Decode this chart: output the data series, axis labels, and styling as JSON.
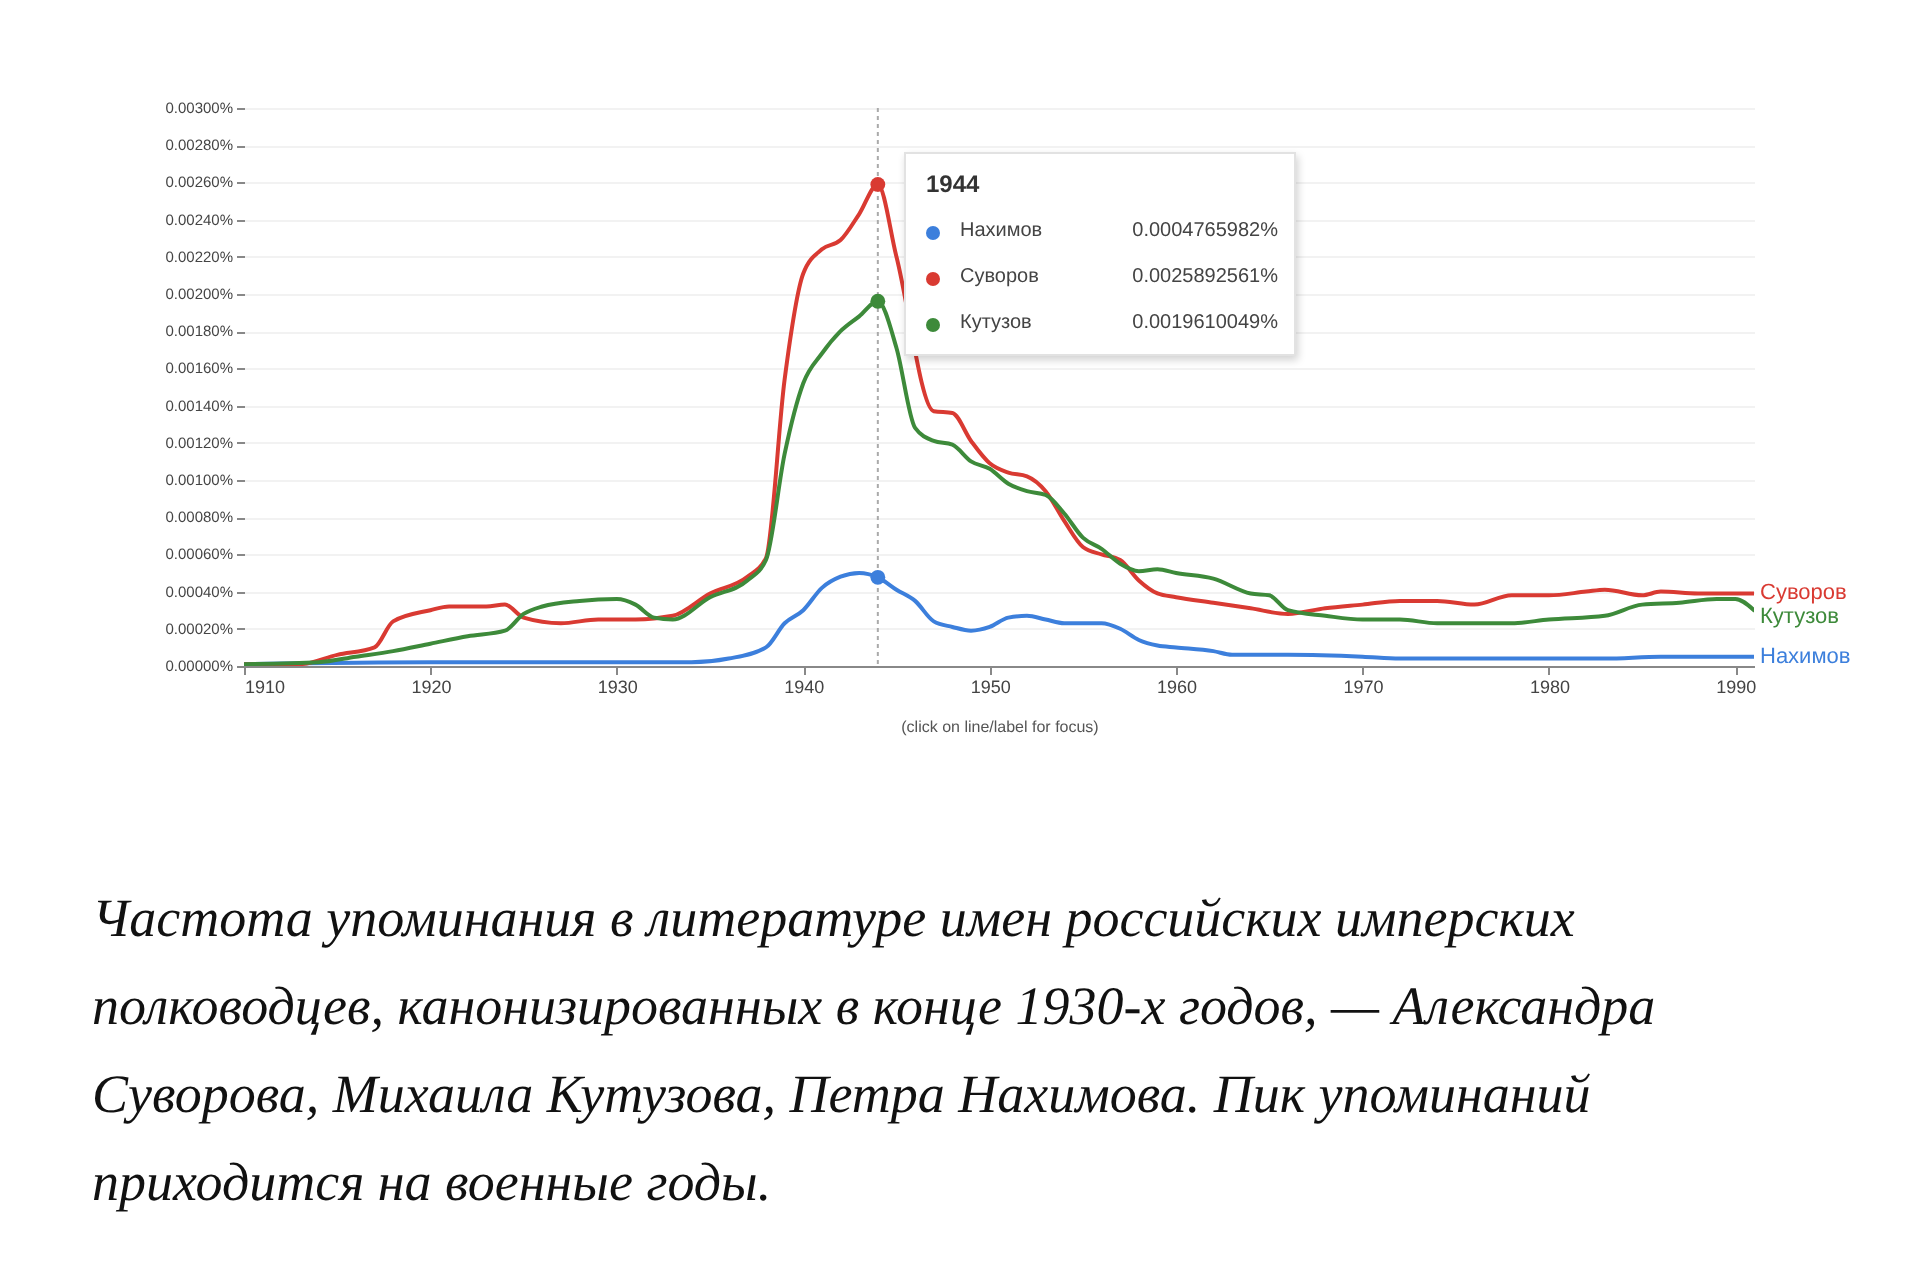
{
  "chart_data": {
    "type": "line",
    "series": [
      {
        "name": "Нахимов",
        "color": "#3c7fdc",
        "x": [
          1910,
          1920,
          1930,
          1934,
          1936,
          1938,
          1939,
          1940,
          1941,
          1942,
          1943,
          1944,
          1945,
          1946,
          1947,
          1948,
          1949,
          1950,
          1951,
          1952,
          1953,
          1954,
          1956,
          1957,
          1958,
          1959,
          1960,
          1962,
          1963,
          1966,
          1970,
          1972,
          1980,
          1983,
          1986,
          1991
        ],
        "values": [
          1e-05,
          2e-05,
          2e-05,
          2e-05,
          4e-05,
          0.0001,
          0.00023,
          0.0003,
          0.00042,
          0.00048,
          0.0005,
          0.0004765982,
          0.00041,
          0.00035,
          0.00024,
          0.00021,
          0.00019,
          0.00021,
          0.00026,
          0.00027,
          0.00025,
          0.00023,
          0.00023,
          0.0002,
          0.00014,
          0.00011,
          0.0001,
          8e-05,
          6e-05,
          6e-05,
          5e-05,
          4e-05,
          4e-05,
          4e-05,
          5e-05,
          5e-05
        ]
      },
      {
        "name": "Суворов",
        "color": "#d93a32",
        "x": [
          1910,
          1913,
          1915,
          1917,
          1918,
          1920,
          1921,
          1923,
          1924,
          1925,
          1927,
          1929,
          1931,
          1933,
          1935,
          1937,
          1938,
          1939,
          1940,
          1941,
          1942,
          1943,
          1944,
          1945,
          1946,
          1947,
          1948,
          1949,
          1950,
          1951,
          1952,
          1953,
          1954,
          1955,
          1956,
          1957,
          1958,
          1959,
          1960,
          1962,
          1964,
          1966,
          1968,
          1970,
          1972,
          1974,
          1976,
          1978,
          1980,
          1982,
          1983,
          1985,
          1986,
          1988,
          1990,
          1991
        ],
        "values": [
          1e-05,
          1e-05,
          6e-05,
          0.0001,
          0.00024,
          0.0003,
          0.00032,
          0.00032,
          0.00033,
          0.00026,
          0.00023,
          0.00025,
          0.00025,
          0.00027,
          0.00039,
          0.00048,
          0.00058,
          0.00154,
          0.00211,
          0.00224,
          0.00229,
          0.00243,
          0.0025892561,
          0.0022,
          null,
          0.00137,
          0.00136,
          0.00121,
          0.00109,
          0.00104,
          0.00102,
          0.00094,
          0.00078,
          0.00064,
          0.0006,
          0.00057,
          0.00046,
          0.00039,
          0.00037,
          0.00034,
          0.00031,
          0.00028,
          0.00031,
          0.00033,
          0.00035,
          0.00035,
          0.00033,
          0.00038,
          0.00038,
          0.0004,
          0.00041,
          0.00038,
          0.0004,
          0.00039,
          0.00039,
          0.00039
        ]
      },
      {
        "name": "Кутузов",
        "color": "#3d8a3a",
        "x": [
          1910,
          1914,
          1916,
          1918,
          1920,
          1922,
          1924,
          1925,
          1926,
          1928,
          1930,
          1931,
          1932,
          1933,
          1935,
          1937,
          1938,
          1939,
          1940,
          1941,
          1942,
          1943,
          1944,
          1945,
          1946,
          1947,
          1948,
          1949,
          1950,
          1951,
          1952,
          1953,
          1954,
          1955,
          1956,
          1957,
          1958,
          1959,
          1960,
          1962,
          1964,
          1965,
          1966,
          1968,
          1970,
          1972,
          1974,
          1976,
          1978,
          1980,
          1983,
          1985,
          1987,
          1989,
          1990,
          1991
        ],
        "values": [
          1e-05,
          2e-05,
          5e-05,
          8e-05,
          0.00012,
          0.00016,
          0.00019,
          0.00028,
          0.00032,
          0.00035,
          0.00036,
          0.00033,
          0.00026,
          0.00025,
          0.00037,
          0.00046,
          0.00057,
          0.00114,
          0.00152,
          0.00168,
          0.0018,
          0.00188,
          0.0019610049,
          0.00171,
          0.00128,
          0.00121,
          0.00119,
          0.0011,
          0.00106,
          0.00098,
          0.00094,
          0.00092,
          0.00082,
          0.00069,
          0.00063,
          0.00055,
          0.00051,
          0.00052,
          0.0005,
          0.00047,
          0.00039,
          0.00038,
          0.0003,
          0.00027,
          0.00025,
          0.00025,
          0.00023,
          0.00023,
          0.00023,
          0.00025,
          0.00027,
          0.00033,
          0.00034,
          0.00036,
          0.00036,
          0.0003
        ]
      }
    ],
    "xlim": [
      1910,
      1991
    ],
    "xticks": [
      1910,
      1920,
      1930,
      1940,
      1950,
      1960,
      1970,
      1980,
      1990
    ],
    "ylim": [
      0,
      0.003
    ],
    "yticks": [
      {
        "value": 0,
        "label": "0.00000%"
      },
      {
        "value": 0.0002,
        "label": "0.00020%"
      },
      {
        "value": 0.0004,
        "label": "0.00040%"
      },
      {
        "value": 0.0006,
        "label": "0.00060%"
      },
      {
        "value": 0.0008,
        "label": "0.00080%"
      },
      {
        "value": 0.001,
        "label": "0.00100%"
      },
      {
        "value": 0.0012,
        "label": "0.00120%"
      },
      {
        "value": 0.0014,
        "label": "0.00140%"
      },
      {
        "value": 0.0016,
        "label": "0.00160%"
      },
      {
        "value": 0.0018,
        "label": "0.00180%"
      },
      {
        "value": 0.002,
        "label": "0.00200%"
      },
      {
        "value": 0.0022,
        "label": "0.00220%"
      },
      {
        "value": 0.0024,
        "label": "0.00240%"
      },
      {
        "value": 0.0026,
        "label": "0.00260%"
      },
      {
        "value": 0.0028,
        "label": "0.00280%"
      },
      {
        "value": 0.003,
        "label": "0.00300%"
      }
    ],
    "grid": "y",
    "legend": "top",
    "ref_lines": [
      {
        "axis": "x",
        "value": 1944,
        "color": "#aaaaaa",
        "line_style": "dotted"
      }
    ],
    "annotations": [
      "1944",
      "0.0004765982%",
      "0.0025892561%",
      "0.0019610049%",
      "(click on line/label for focus)",
      "Частота упоминания в литературе имен российских имперских полководцев, канонизированных в конце 1930-х годов, — Александра Суворова, Михаила Кутузова, Петра Нахимова. Пик упоминаний приходится на военные годы."
    ]
  }
}
